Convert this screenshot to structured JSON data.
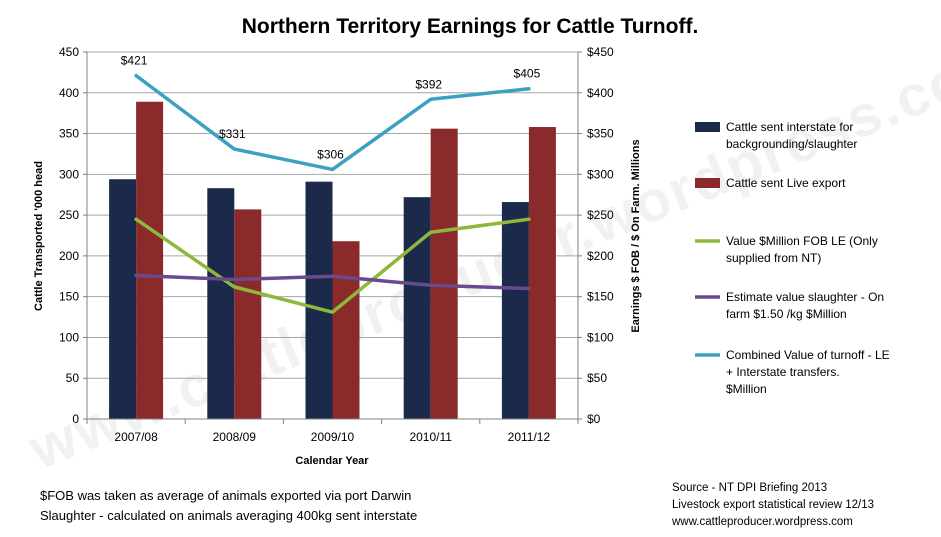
{
  "chart_data": {
    "type": "bar",
    "title": "Northern Territory Earnings for Cattle Turnoff.",
    "xlabel": "Calendar Year",
    "ylabel": "Cattle Transported '000 head",
    "y2label": "Earnings $ FOB / $ On Farm. Millions",
    "categories": [
      "2007/08",
      "2008/09",
      "2009/10",
      "2010/11",
      "2011/12"
    ],
    "ylim": [
      0,
      450
    ],
    "y2lim": [
      0,
      450
    ],
    "yticks": [
      "0",
      "50",
      "100",
      "150",
      "200",
      "250",
      "300",
      "350",
      "400",
      "450"
    ],
    "y2ticks": [
      "$0",
      "$50",
      "$100",
      "$150",
      "$200",
      "$250",
      "$300",
      "$350",
      "$400",
      "$450"
    ],
    "grid": "horizontal",
    "legend_position": "right",
    "series": [
      {
        "name": "Cattle sent interstate for backgrounding/slaughter",
        "kind": "bar",
        "axis": "left",
        "color": "#1b2a4a",
        "values": [
          294,
          283,
          291,
          272,
          266
        ]
      },
      {
        "name": "Cattle sent Live export",
        "kind": "bar",
        "axis": "left",
        "color": "#8b2a2a",
        "values": [
          389,
          257,
          218,
          356,
          358
        ]
      },
      {
        "name": "Value $Million FOB LE (Only supplied from NT)",
        "kind": "line",
        "axis": "right",
        "color": "#8db83c",
        "values": [
          245,
          162,
          131,
          229,
          245
        ]
      },
      {
        "name": "Estimate value slaughter - On farm $1.50 /kg $Million",
        "kind": "line",
        "axis": "right",
        "color": "#6a4a8e",
        "values": [
          176,
          171,
          175,
          164,
          160
        ]
      },
      {
        "name": "Combined Value of turnoff - LE + Interstate transfers. $Million",
        "kind": "line",
        "axis": "right",
        "color": "#3ba1c0",
        "values": [
          421,
          331,
          306,
          392,
          405
        ],
        "labels": [
          "$421",
          "$331",
          "$306",
          "$392",
          "$405"
        ]
      }
    ]
  },
  "footnote": {
    "line1": "$FOB  was taken as average of animals exported via port Darwin",
    "line2": "Slaughter - calculated on animals averaging 400kg sent interstate"
  },
  "source": {
    "line1": "Source - NT DPI Briefing 2013",
    "line2": "Livestock export statistical review 12/13",
    "line3": "www.cattleproducer.wordpress.com"
  },
  "watermark": "www.cattleproducer.wordpress.com"
}
